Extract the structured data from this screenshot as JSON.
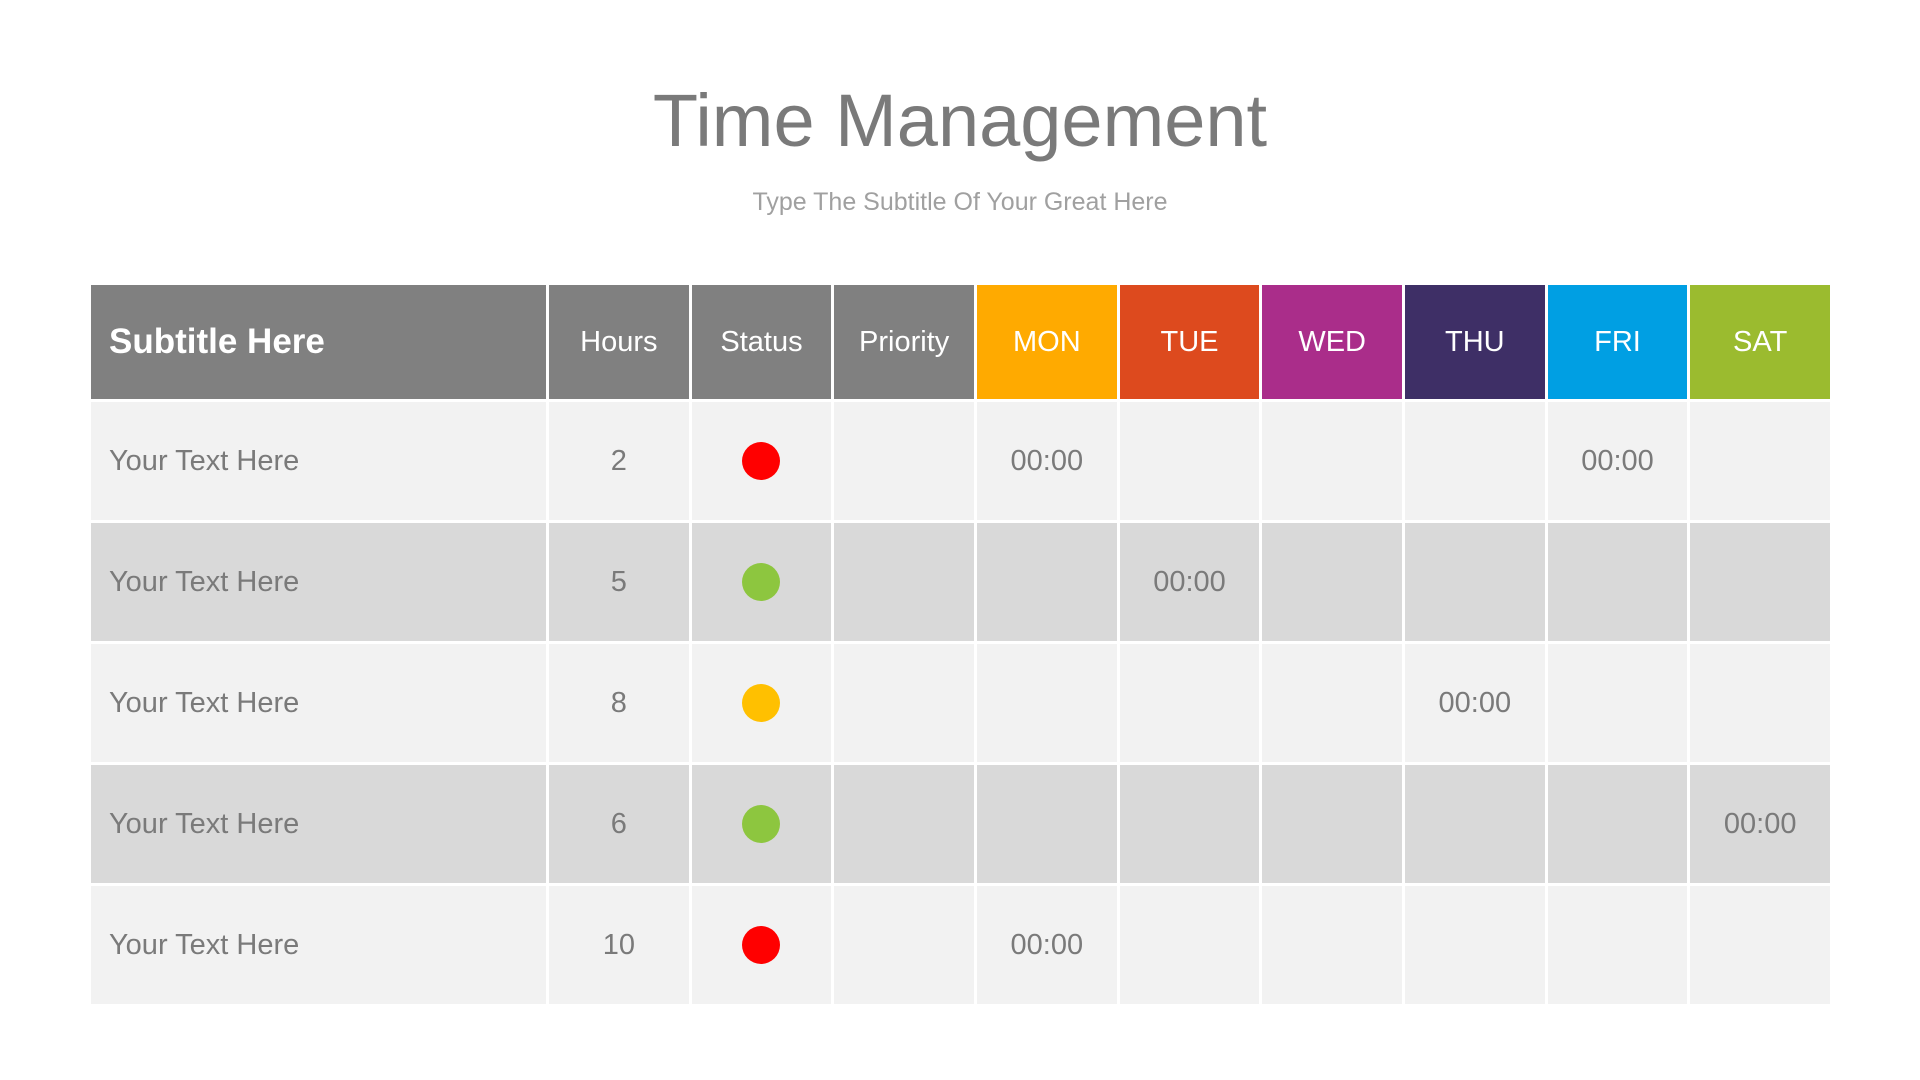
{
  "title": "Time Management",
  "subtitle": "Type The Subtitle Of Your Great Here",
  "table": {
    "headers": [
      "Subtitle Here",
      "Hours",
      "Status",
      "Priority",
      "MON",
      "TUE",
      "WED",
      "THU",
      "FRI",
      "SAT"
    ],
    "header_colors": [
      "#808080",
      "#808080",
      "#808080",
      "#808080",
      "#FFAA00",
      "#DD4A1E",
      "#AA2D8A",
      "#3E2F66",
      "#009FE3",
      "#9BBB2F"
    ],
    "status_colors": {
      "red": "#FF0000",
      "green": "#8DC63F",
      "yellow": "#FFC000"
    },
    "rows": [
      {
        "label": "Your Text Here",
        "hours": "2",
        "status": "red",
        "priority": "",
        "days": [
          "00:00",
          "",
          "",
          "",
          "00:00",
          ""
        ]
      },
      {
        "label": "Your Text Here",
        "hours": "5",
        "status": "green",
        "priority": "",
        "days": [
          "",
          "00:00",
          "",
          "",
          "",
          ""
        ]
      },
      {
        "label": "Your Text Here",
        "hours": "8",
        "status": "yellow",
        "priority": "",
        "days": [
          "",
          "",
          "",
          "00:00",
          "",
          ""
        ]
      },
      {
        "label": "Your Text Here",
        "hours": "6",
        "status": "green",
        "priority": "",
        "days": [
          "",
          "",
          "",
          "",
          "",
          "00:00"
        ]
      },
      {
        "label": "Your Text Here",
        "hours": "10",
        "status": "red",
        "priority": "",
        "days": [
          "00:00",
          "",
          "",
          "",
          "",
          ""
        ]
      }
    ]
  }
}
